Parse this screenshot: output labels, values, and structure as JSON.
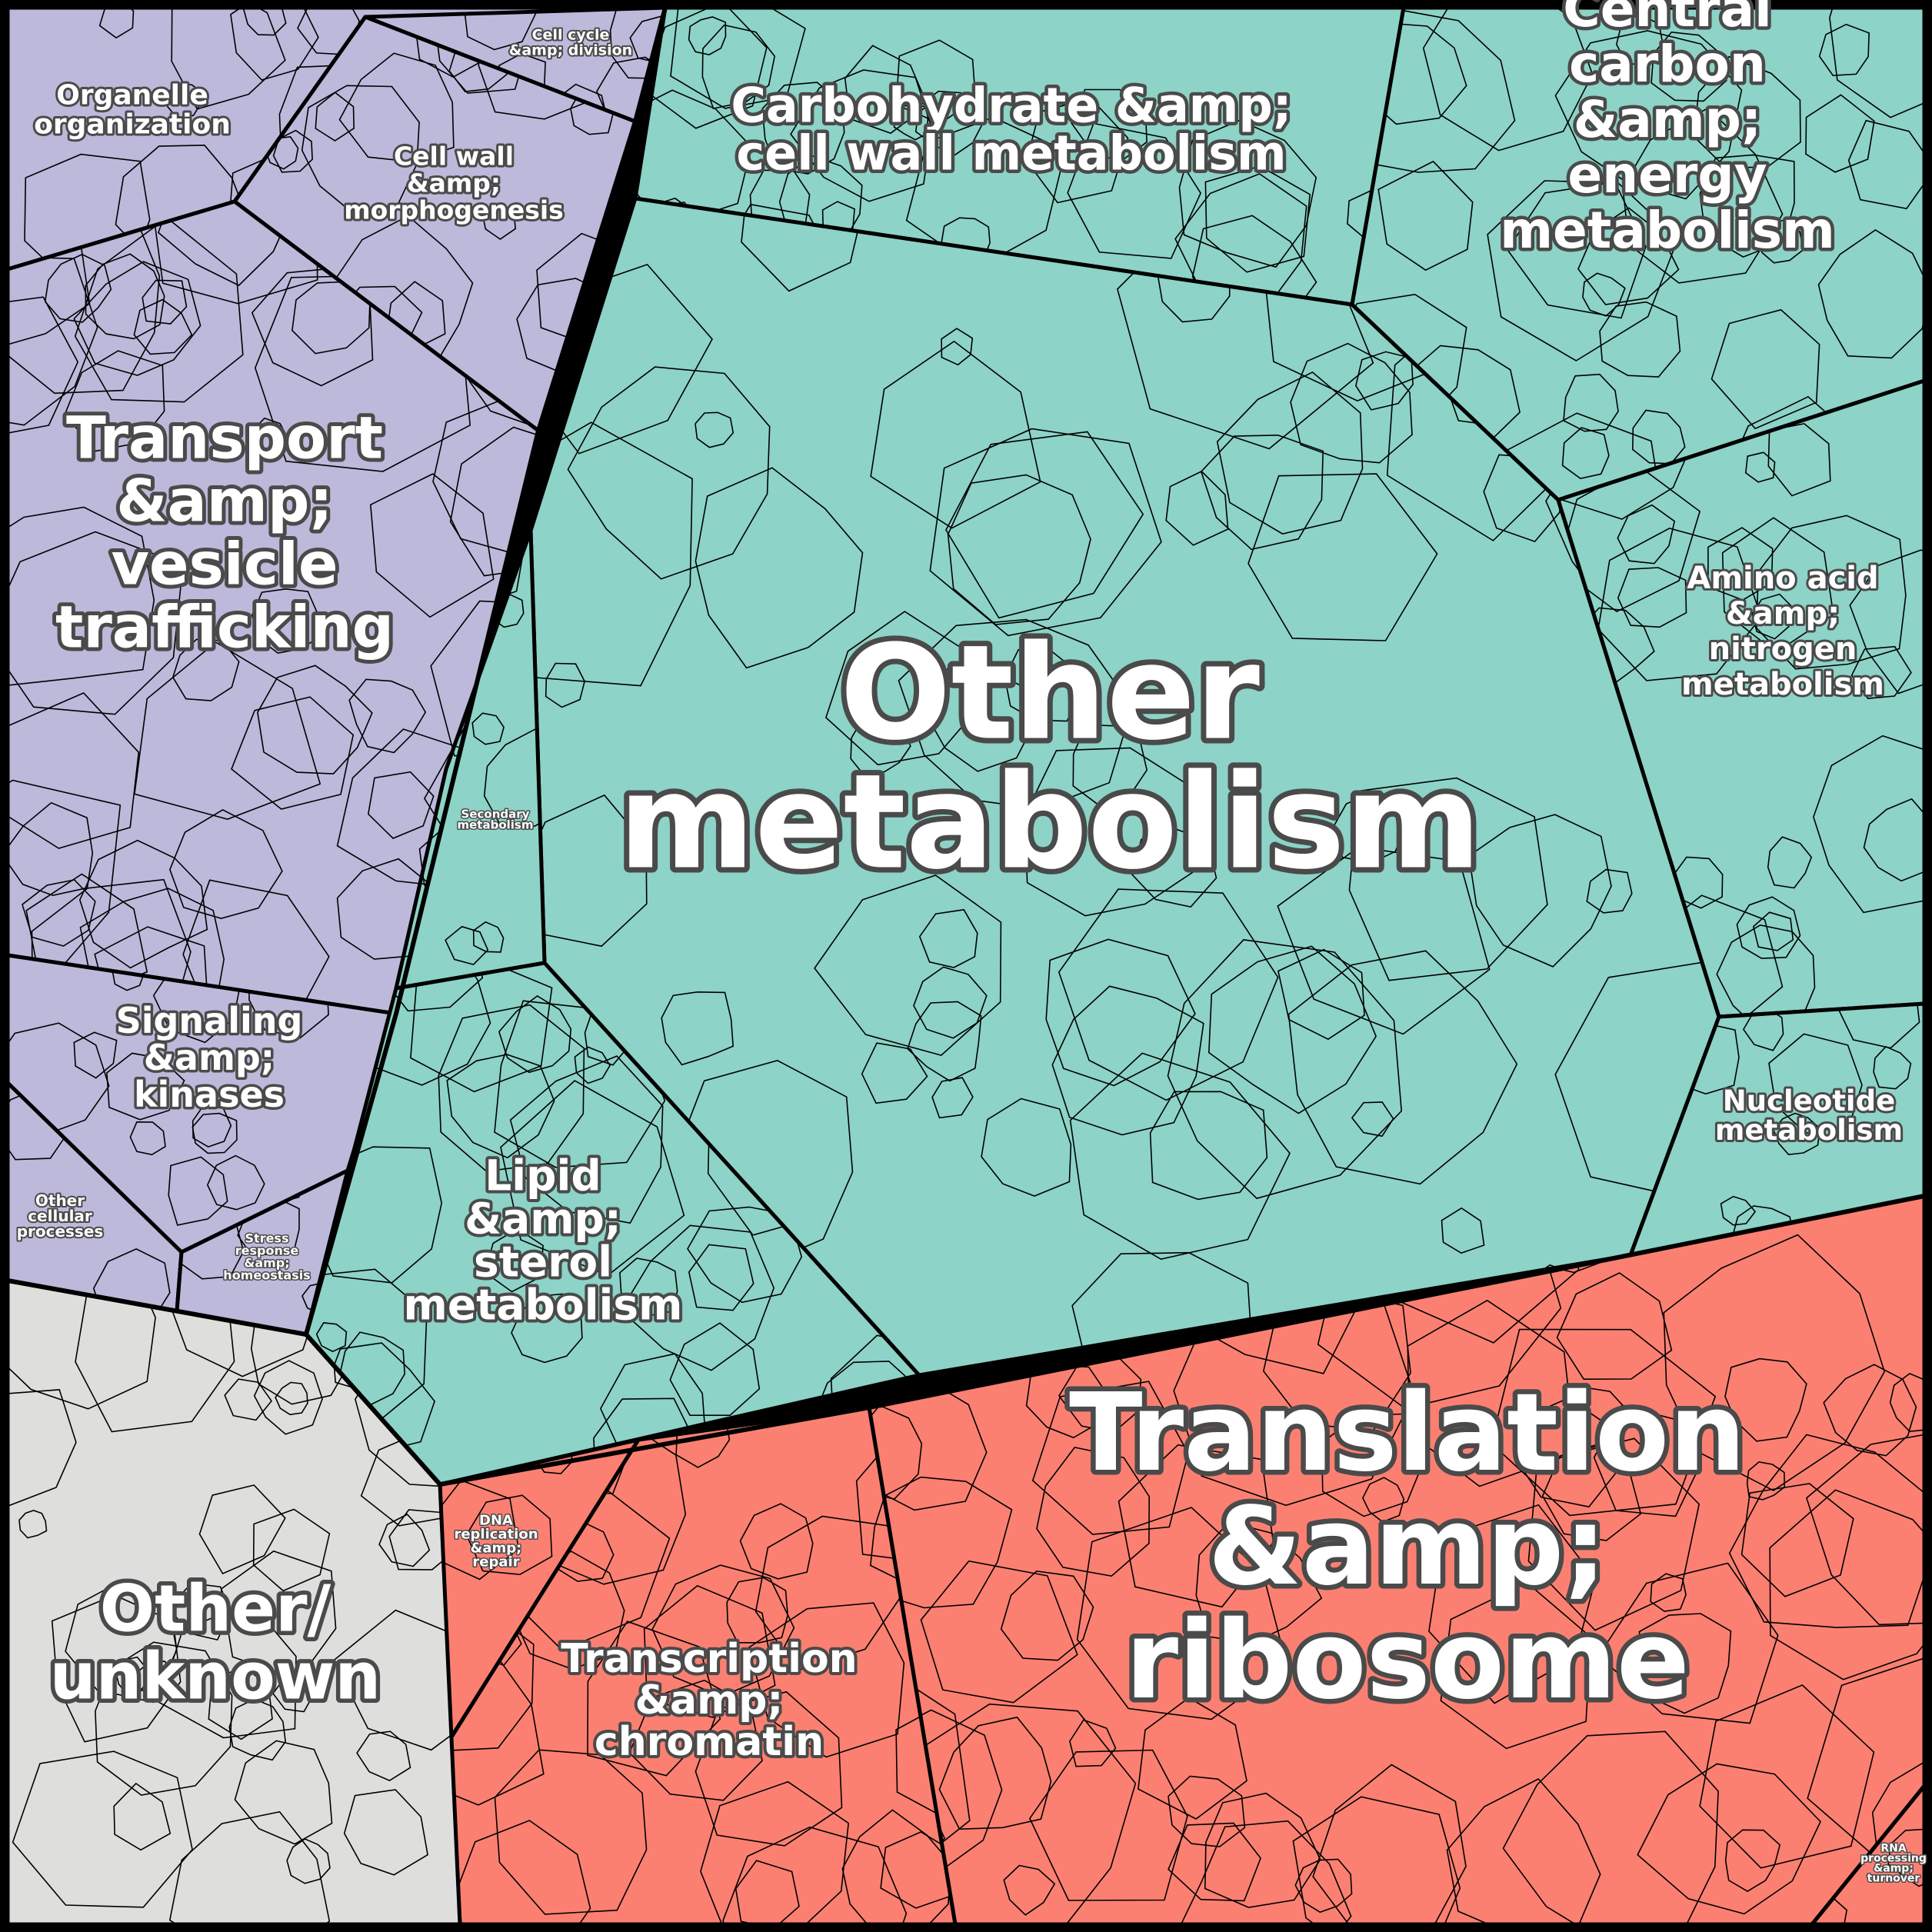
{
  "groups": {
    "organelle": {
      "label": [
        "Organelle",
        "organization"
      ],
      "color": "#bcb9db"
    },
    "cellcycle": {
      "label": [
        "Cell cycle",
        "&amp; division"
      ],
      "color": "#bcb9db"
    },
    "cellwall": {
      "label": [
        "Cell wall",
        "&amp;",
        "morphogenesis"
      ],
      "color": "#bcb9db"
    },
    "transport": {
      "label": [
        "Transport",
        "&amp;",
        "vesicle",
        "trafficking"
      ],
      "color": "#bcb9db"
    },
    "signaling": {
      "label": [
        "Signaling",
        "&amp;",
        "kinases"
      ],
      "color": "#bcb9db"
    },
    "othercell": {
      "label": [
        "Other",
        "cellular",
        "processes"
      ],
      "color": "#bcb9db"
    },
    "stress": {
      "label": [
        "Stress",
        "response",
        "&amp;",
        "homeostasis"
      ],
      "color": "#bcb9db"
    },
    "carb": {
      "label": [
        "Carbohydrate &amp;",
        "cell wall metabolism"
      ],
      "color": "#8dd3c7"
    },
    "central": {
      "label": [
        "Central",
        "carbon",
        "&amp;",
        "energy",
        "metabolism"
      ],
      "color": "#8dd3c7"
    },
    "othermeta": {
      "label": [
        "Other",
        "metabolism"
      ],
      "color": "#8dd3c7"
    },
    "secondary": {
      "label": [
        "Secondary",
        "metabolism"
      ],
      "color": "#8dd3c7"
    },
    "amino": {
      "label": [
        "Amino acid",
        "&amp;",
        "nitrogen",
        "metabolism"
      ],
      "color": "#8dd3c7"
    },
    "nucleotide": {
      "label": [
        "Nucleotide",
        "metabolism"
      ],
      "color": "#8dd3c7"
    },
    "lipid": {
      "label": [
        "Lipid",
        "&amp;",
        "sterol",
        "metabolism"
      ],
      "color": "#8dd3c7"
    },
    "translation": {
      "label": [
        "Translation",
        "&amp;",
        "ribosome"
      ],
      "color": "#fb8072"
    },
    "transcription": {
      "label": [
        "Transcription",
        "&amp;",
        "chromatin"
      ],
      "color": "#fb8072"
    },
    "dna": {
      "label": [
        "DNA",
        "replication",
        "&amp;",
        "repair"
      ],
      "color": "#fb8072"
    },
    "rna": {
      "label": [
        "RNA",
        "processing",
        "&amp;",
        "turnover"
      ],
      "color": "#fb8072"
    },
    "unknown": {
      "label": [
        "Other/",
        "unknown"
      ],
      "color": "#dededd"
    }
  }
}
